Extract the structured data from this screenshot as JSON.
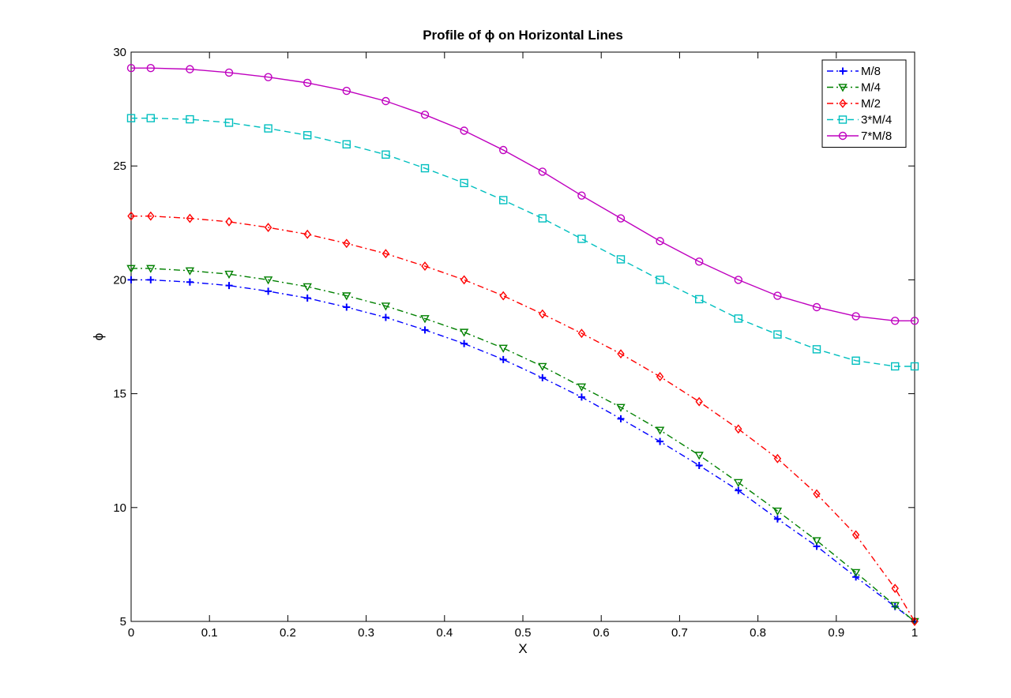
{
  "chart_data": {
    "type": "line",
    "title": "Profile of ϕ on Horizontal Lines",
    "xlabel": "X",
    "ylabel": "ϕ",
    "xlim": [
      0,
      1
    ],
    "ylim": [
      5,
      30
    ],
    "xticks": [
      0,
      0.1,
      0.2,
      0.3,
      0.4,
      0.5,
      0.6,
      0.7,
      0.8,
      0.9,
      1
    ],
    "xtick_labels": [
      "0",
      "0.1",
      "0.2",
      "0.3",
      "0.4",
      "0.5",
      "0.6",
      "0.7",
      "0.8",
      "0.9",
      "1"
    ],
    "yticks": [
      5,
      10,
      15,
      20,
      25,
      30
    ],
    "ytick_labels": [
      "5",
      "10",
      "15",
      "20",
      "25",
      "30"
    ],
    "grid": false,
    "legend_position": "top-right",
    "x": [
      0,
      0.025,
      0.075,
      0.125,
      0.175,
      0.225,
      0.275,
      0.325,
      0.375,
      0.425,
      0.475,
      0.525,
      0.575,
      0.625,
      0.675,
      0.725,
      0.775,
      0.825,
      0.875,
      0.925,
      0.975,
      1
    ],
    "series": [
      {
        "name": "M/8",
        "color": "#0000ff",
        "dash": "dashdot",
        "marker": "plus",
        "values": [
          20.0,
          20.0,
          19.9,
          19.75,
          19.5,
          19.2,
          18.8,
          18.35,
          17.8,
          17.2,
          16.5,
          15.7,
          14.85,
          13.9,
          12.9,
          11.85,
          10.75,
          9.5,
          8.3,
          6.95,
          5.65,
          5.0
        ]
      },
      {
        "name": "M/4",
        "color": "#008000",
        "dash": "dashdot",
        "marker": "triangle-down",
        "values": [
          20.5,
          20.5,
          20.4,
          20.25,
          20.0,
          19.7,
          19.3,
          18.85,
          18.3,
          17.7,
          17.0,
          16.2,
          15.3,
          14.4,
          13.4,
          12.3,
          11.1,
          9.85,
          8.55,
          7.15,
          5.7,
          5.0
        ]
      },
      {
        "name": "M/2",
        "color": "#ff0000",
        "dash": "dashdot",
        "marker": "diamond",
        "values": [
          22.8,
          22.8,
          22.7,
          22.55,
          22.3,
          22.0,
          21.6,
          21.15,
          20.6,
          20.0,
          19.3,
          18.5,
          17.65,
          16.75,
          15.75,
          14.65,
          13.45,
          12.15,
          10.6,
          8.8,
          6.45,
          5.0
        ]
      },
      {
        "name": "3*M/4",
        "color": "#00bfbf",
        "dash": "dash",
        "marker": "square",
        "values": [
          27.1,
          27.1,
          27.05,
          26.9,
          26.65,
          26.35,
          25.95,
          25.5,
          24.9,
          24.25,
          23.5,
          22.7,
          21.8,
          20.9,
          20.0,
          19.15,
          18.3,
          17.6,
          16.95,
          16.45,
          16.2,
          16.2
        ]
      },
      {
        "name": "7*M/8",
        "color": "#bf00bf",
        "dash": "solid",
        "marker": "circle",
        "values": [
          29.3,
          29.3,
          29.25,
          29.1,
          28.9,
          28.65,
          28.3,
          27.85,
          27.25,
          26.55,
          25.7,
          24.75,
          23.7,
          22.7,
          21.7,
          20.8,
          20.0,
          19.3,
          18.8,
          18.4,
          18.2,
          18.2
        ]
      }
    ]
  }
}
